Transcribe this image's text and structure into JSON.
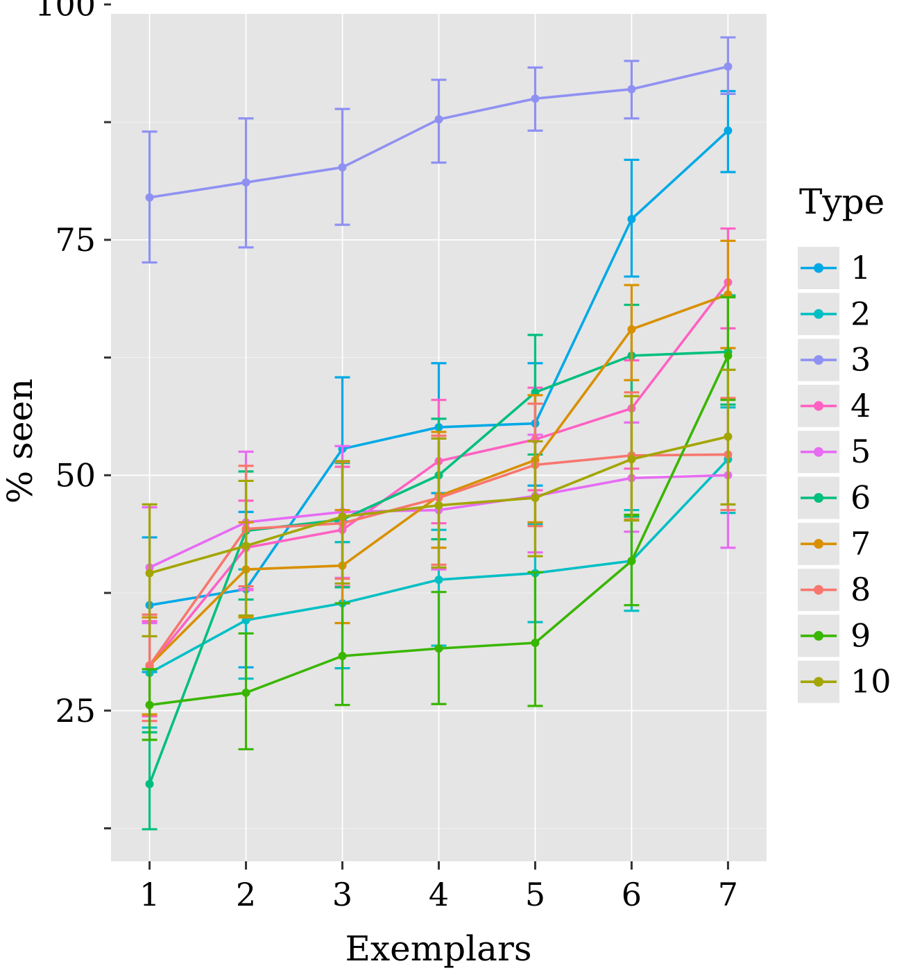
{
  "chart_data": {
    "type": "line",
    "title": "",
    "xlabel": "Exemplars",
    "ylabel": "% seen",
    "x": [
      1,
      2,
      3,
      4,
      5,
      6,
      7
    ],
    "xlim": [
      0.6,
      7.4
    ],
    "ylim": [
      9,
      99
    ],
    "y_ticks": [
      25,
      37.5,
      50,
      62.5,
      75,
      87.5,
      100,
      12.5
    ],
    "y_tick_labels": [
      "25",
      "",
      "50",
      "",
      "75",
      "",
      "100",
      ""
    ],
    "x_tick_labels": [
      "1",
      "2",
      "3",
      "4",
      "5",
      "6",
      "7"
    ],
    "grid": true,
    "legend": {
      "title": "Type",
      "position": "right"
    },
    "series": [
      {
        "name": "1",
        "color": "#00A9E6",
        "values": [
          36.2,
          37.9,
          52.8,
          55.1,
          55.5,
          77.2,
          86.6
        ],
        "lower": [
          29.1,
          29.6,
          45.1,
          48.1,
          48.9,
          71.1,
          82.2
        ],
        "upper": [
          43.4,
          46.1,
          60.4,
          61.9,
          61.9,
          83.5,
          90.8
        ]
      },
      {
        "name": "2",
        "color": "#00BFC4",
        "values": [
          29.0,
          34.6,
          36.4,
          38.9,
          39.6,
          40.9,
          51.7
        ],
        "lower": [
          23.2,
          28.4,
          29.5,
          31.9,
          34.4,
          35.6,
          46.0
        ],
        "upper": [
          34.9,
          40.0,
          42.9,
          44.2,
          44.8,
          46.3,
          57.2
        ]
      },
      {
        "name": "3",
        "color": "#8F91F2",
        "values": [
          79.5,
          81.1,
          82.7,
          87.8,
          90.0,
          91.0,
          93.4
        ],
        "lower": [
          72.6,
          74.2,
          76.6,
          83.2,
          86.6,
          87.9,
          90.5
        ],
        "upper": [
          86.5,
          87.9,
          88.9,
          92.0,
          93.3,
          94.0,
          96.5
        ]
      },
      {
        "name": "4",
        "color": "#FF61C3",
        "values": [
          29.7,
          42.3,
          44.2,
          51.5,
          53.8,
          57.1,
          70.5
        ],
        "lower": [
          24.4,
          37.8,
          38.2,
          44.9,
          48.4,
          50.7,
          65.6
        ],
        "upper": [
          34.5,
          47.3,
          50.9,
          58.0,
          59.3,
          62.2,
          76.2
        ]
      },
      {
        "name": "5",
        "color": "#E76BF3",
        "values": [
          40.2,
          45.0,
          46.1,
          46.3,
          47.8,
          49.7,
          50.0
        ],
        "lower": [
          34.3,
          37.9,
          39.1,
          40.0,
          41.8,
          44.0,
          42.3
        ],
        "upper": [
          46.6,
          52.5,
          53.1,
          53.9,
          54.3,
          55.6,
          57.5
        ]
      },
      {
        "name": "6",
        "color": "#00BF7D",
        "values": [
          17.2,
          44.1,
          45.3,
          50.0,
          58.8,
          62.7,
          63.1
        ],
        "lower": [
          12.4,
          36.8,
          38.1,
          43.2,
          52.2,
          45.6,
          57.5
        ],
        "upper": [
          22.7,
          50.4,
          51.3,
          56.0,
          64.9,
          68.1,
          69.1
        ]
      },
      {
        "name": "7",
        "color": "#D89000",
        "values": [
          29.8,
          40.0,
          40.4,
          47.8,
          51.6,
          65.5,
          69.2
        ],
        "lower": [
          24.6,
          34.9,
          34.3,
          42.3,
          45.0,
          60.1,
          63.5
        ],
        "upper": [
          34.9,
          45.0,
          46.3,
          54.6,
          58.5,
          70.2,
          74.9
        ]
      },
      {
        "name": "8",
        "color": "#F8766D",
        "values": [
          29.8,
          44.3,
          44.9,
          47.6,
          51.1,
          52.1,
          52.2
        ],
        "lower": [
          23.9,
          38.2,
          39.0,
          40.5,
          44.6,
          45.3,
          46.3
        ],
        "upper": [
          35.2,
          51.0,
          51.4,
          54.2,
          57.6,
          58.8,
          58.2
        ]
      },
      {
        "name": "9",
        "color": "#39B600",
        "values": [
          25.6,
          26.9,
          30.8,
          31.6,
          32.2,
          40.9,
          62.7
        ],
        "lower": [
          21.9,
          20.9,
          25.6,
          25.7,
          25.5,
          36.2,
          58.0
        ],
        "upper": [
          29.4,
          33.2,
          36.4,
          37.6,
          39.7,
          45.8,
          68.9
        ]
      },
      {
        "name": "10",
        "color": "#A3A500",
        "values": [
          39.6,
          42.5,
          45.6,
          46.8,
          47.6,
          51.7,
          54.1
        ],
        "lower": [
          32.9,
          35.1,
          38.5,
          40.2,
          41.4,
          45.2,
          46.9
        ],
        "upper": [
          46.9,
          49.4,
          51.5,
          53.9,
          53.6,
          58.4,
          61.2
        ]
      }
    ]
  }
}
